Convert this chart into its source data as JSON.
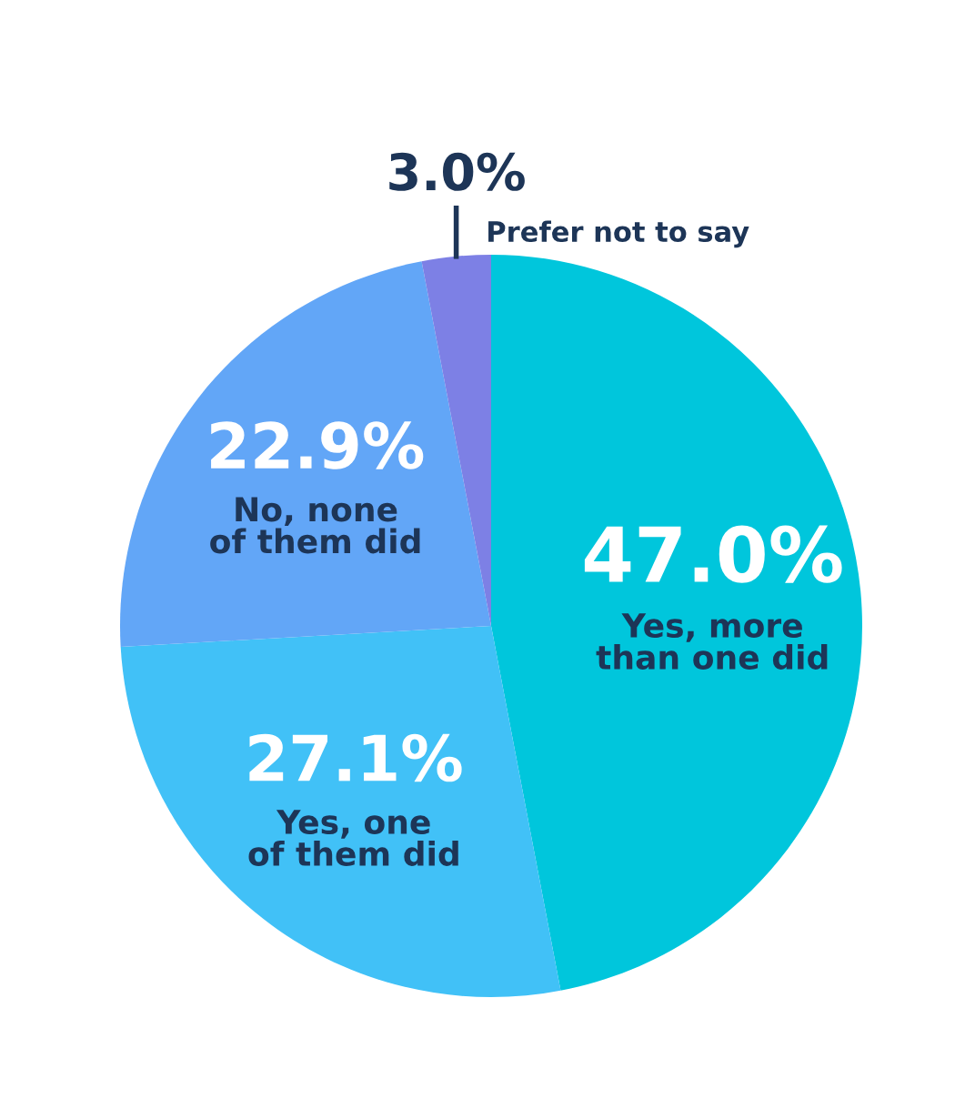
{
  "chart_data": {
    "type": "pie",
    "categories": [
      "Yes, more than one did",
      "Yes, one of them did",
      "No, none of them did",
      "Prefer not to say"
    ],
    "values": [
      47.0,
      27.1,
      22.9,
      3.0
    ],
    "colors": [
      "#00c6dc",
      "#41c1f7",
      "#62a6f7",
      "#7d80e5"
    ],
    "value_labels": [
      "47.0%",
      "27.1%",
      "22.9%",
      "3.0%"
    ],
    "data_labels": true,
    "legend": false
  }
}
